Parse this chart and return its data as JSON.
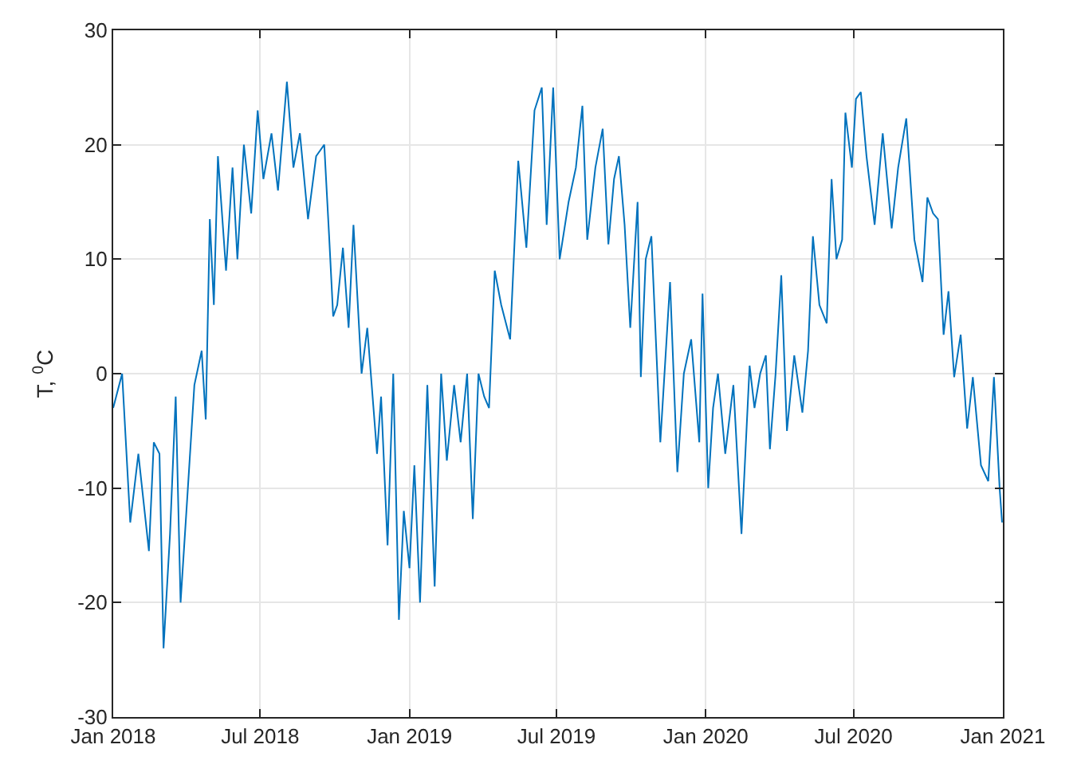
{
  "chart_data": {
    "type": "line",
    "ylabel": "T, $^{0}$C",
    "x": [
      "2018-01-01",
      "2018-01-12",
      "2018-01-22",
      "2018-02-01",
      "2018-02-14",
      "2018-02-20",
      "2018-02-27",
      "2018-03-04",
      "2018-03-12",
      "2018-03-19",
      "2018-03-25",
      "2018-04-03",
      "2018-04-11",
      "2018-04-20",
      "2018-04-25",
      "2018-04-30",
      "2018-05-05",
      "2018-05-10",
      "2018-05-20",
      "2018-05-28",
      "2018-06-03",
      "2018-06-11",
      "2018-06-20",
      "2018-06-28",
      "2018-07-05",
      "2018-07-15",
      "2018-07-23",
      "2018-08-03",
      "2018-08-11",
      "2018-08-19",
      "2018-08-29",
      "2018-09-08",
      "2018-09-18",
      "2018-09-24",
      "2018-09-29",
      "2018-10-04",
      "2018-10-11",
      "2018-10-18",
      "2018-10-24",
      "2018-11-03",
      "2018-11-10",
      "2018-11-22",
      "2018-11-27",
      "2018-12-05",
      "2018-12-12",
      "2018-12-19",
      "2018-12-25",
      "2019-01-01",
      "2019-01-07",
      "2019-01-14",
      "2019-01-23",
      "2019-02-01",
      "2019-02-09",
      "2019-02-16",
      "2019-02-25",
      "2019-03-05",
      "2019-03-13",
      "2019-03-20",
      "2019-03-27",
      "2019-04-03",
      "2019-04-09",
      "2019-04-16",
      "2019-04-24",
      "2019-05-05",
      "2019-05-15",
      "2019-05-25",
      "2019-06-04",
      "2019-06-13",
      "2019-06-19",
      "2019-06-27",
      "2019-07-05",
      "2019-07-16",
      "2019-07-25",
      "2019-08-02",
      "2019-08-08",
      "2019-08-18",
      "2019-08-27",
      "2019-09-03",
      "2019-09-10",
      "2019-09-16",
      "2019-09-23",
      "2019-09-30",
      "2019-10-09",
      "2019-10-13",
      "2019-10-19",
      "2019-10-26",
      "2019-11-06",
      "2019-11-18",
      "2019-11-27",
      "2019-12-05",
      "2019-12-14",
      "2019-12-24",
      "2019-12-28",
      "2020-01-04",
      "2020-01-10",
      "2020-01-16",
      "2020-01-25",
      "2020-02-04",
      "2020-02-14",
      "2020-02-24",
      "2020-03-01",
      "2020-03-08",
      "2020-03-15",
      "2020-03-20",
      "2020-03-27",
      "2020-04-03",
      "2020-04-10",
      "2020-04-19",
      "2020-04-29",
      "2020-05-06",
      "2020-05-12",
      "2020-05-20",
      "2020-05-29",
      "2020-06-04",
      "2020-06-10",
      "2020-06-17",
      "2020-06-21",
      "2020-06-29",
      "2020-07-04",
      "2020-07-10",
      "2020-07-17",
      "2020-07-27",
      "2020-08-06",
      "2020-08-17",
      "2020-08-25",
      "2020-09-04",
      "2020-09-14",
      "2020-09-24",
      "2020-09-30",
      "2020-10-07",
      "2020-10-13",
      "2020-10-20",
      "2020-10-26",
      "2020-11-02",
      "2020-11-10",
      "2020-11-18",
      "2020-11-25",
      "2020-12-05",
      "2020-12-14",
      "2020-12-21",
      "2020-12-28",
      "2020-12-31"
    ],
    "series": [
      {
        "color": "#0072bd",
        "values": [
          -3,
          0,
          -13,
          -7,
          -15.5,
          -6,
          -7,
          -24,
          -14,
          -2,
          -20,
          -10,
          -1,
          2,
          -4,
          13.5,
          6,
          19,
          9,
          18,
          10,
          20,
          14,
          23,
          17,
          21,
          16,
          25.5,
          18,
          21,
          13.5,
          19,
          20,
          12,
          5,
          6,
          11,
          4,
          13,
          0,
          4,
          -7,
          -2,
          -15,
          0,
          -21.5,
          -12,
          -17,
          -8,
          -20,
          -1,
          -18.6,
          0,
          -7.6,
          -1,
          -6,
          0,
          -12.7,
          0,
          -2,
          -3,
          9,
          6,
          3,
          18.6,
          11,
          23,
          25,
          13,
          25,
          10,
          15,
          18,
          23.4,
          11.7,
          18,
          21.4,
          11.3,
          17,
          19,
          13,
          4,
          15,
          -0.3,
          10,
          12,
          -6,
          8,
          -8.6,
          0,
          3,
          -6,
          7,
          -10,
          -3,
          0,
          -7,
          -1,
          -14,
          0.7,
          -3,
          0,
          1.6,
          -6.6,
          0,
          8.6,
          -5,
          1.6,
          -3.4,
          2,
          12,
          6,
          4.4,
          17,
          10,
          11.7,
          22.8,
          18,
          24,
          24.6,
          19,
          13,
          21,
          12.7,
          18,
          22.3,
          11.7,
          8,
          15.4,
          14,
          13.5,
          3.4,
          7.2,
          -0.3,
          3.4,
          -4.8,
          -0.3,
          -8,
          -9.4,
          -0.3,
          -10,
          -13
        ]
      }
    ],
    "xlim": [
      "2018-01-01",
      "2021-01-01"
    ],
    "xticks": [
      {
        "value": "2018-01-01",
        "label": "Jan 2018"
      },
      {
        "value": "2018-07-01",
        "label": "Jul 2018"
      },
      {
        "value": "2019-01-01",
        "label": "Jan 2019"
      },
      {
        "value": "2019-07-01",
        "label": "Jul 2019"
      },
      {
        "value": "2020-01-01",
        "label": "Jan 2020"
      },
      {
        "value": "2020-07-01",
        "label": "Jul 2020"
      },
      {
        "value": "2021-01-01",
        "label": "Jan 2021"
      }
    ],
    "ylim": [
      -30,
      30
    ],
    "yticks": [
      -30,
      -20,
      -10,
      0,
      10,
      20,
      30
    ],
    "grid": true,
    "marker": "none",
    "line_style": "solid"
  }
}
